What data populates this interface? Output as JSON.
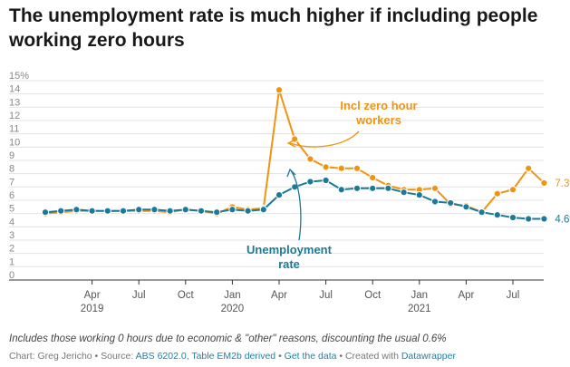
{
  "header": {
    "title": "The unemployment rate is much higher if including people working zero hours"
  },
  "chart_data": {
    "type": "line",
    "title": "The unemployment rate is much higher if including people working zero hours",
    "xlabel": "",
    "ylabel": "",
    "ylim": [
      0,
      15
    ],
    "y_ticks": [
      "0",
      "1",
      "2",
      "3",
      "4",
      "5",
      "6",
      "7",
      "8",
      "9",
      "10",
      "11",
      "12",
      "13",
      "14",
      "15%"
    ],
    "x_ticks": [
      {
        "month": "Apr",
        "year": "2019",
        "index": 3
      },
      {
        "month": "Jul",
        "year": "",
        "index": 6
      },
      {
        "month": "Oct",
        "year": "",
        "index": 9
      },
      {
        "month": "Jan",
        "year": "2020",
        "index": 12
      },
      {
        "month": "Apr",
        "year": "",
        "index": 15
      },
      {
        "month": "Jul",
        "year": "",
        "index": 18
      },
      {
        "month": "Oct",
        "year": "",
        "index": 21
      },
      {
        "month": "Jan",
        "year": "2021",
        "index": 24
      },
      {
        "month": "Apr",
        "year": "",
        "index": 27
      },
      {
        "month": "Jul",
        "year": "",
        "index": 30
      }
    ],
    "x": [
      "2019-01",
      "2019-02",
      "2019-03",
      "2019-04",
      "2019-05",
      "2019-06",
      "2019-07",
      "2019-08",
      "2019-09",
      "2019-10",
      "2019-11",
      "2019-12",
      "2020-01",
      "2020-02",
      "2020-03",
      "2020-04",
      "2020-05",
      "2020-06",
      "2020-07",
      "2020-08",
      "2020-09",
      "2020-10",
      "2020-11",
      "2020-12",
      "2021-01",
      "2021-02",
      "2021-03",
      "2021-04",
      "2021-05",
      "2021-06",
      "2021-07",
      "2021-08",
      "2021-09"
    ],
    "grid": true,
    "series": [
      {
        "name": "Incl zero hour workers",
        "color": "#f2930f",
        "end_label": "7.3%",
        "values": [
          5.0,
          5.1,
          5.2,
          5.2,
          5.2,
          5.2,
          5.2,
          5.2,
          5.1,
          5.3,
          5.2,
          5.0,
          5.5,
          5.3,
          5.4,
          14.3,
          10.6,
          9.1,
          8.5,
          8.4,
          8.4,
          7.7,
          7.1,
          6.8,
          6.8,
          6.9,
          5.7,
          5.6,
          5.1,
          6.5,
          6.8,
          8.4,
          7.3
        ]
      },
      {
        "name": "Unemployment rate",
        "color": "#1b7a99",
        "end_label": "4.6%",
        "values": [
          5.1,
          5.2,
          5.3,
          5.2,
          5.2,
          5.2,
          5.3,
          5.3,
          5.2,
          5.3,
          5.2,
          5.1,
          5.3,
          5.2,
          5.3,
          6.4,
          7.0,
          7.4,
          7.5,
          6.8,
          6.9,
          6.9,
          6.9,
          6.6,
          6.4,
          5.9,
          5.8,
          5.5,
          5.1,
          4.9,
          4.7,
          4.6,
          4.6
        ]
      }
    ],
    "annotations": [
      {
        "text_lines": [
          "Incl zero hour",
          "workers"
        ],
        "color": "#f2930f"
      },
      {
        "text_lines": [
          "Unemployment",
          "rate"
        ],
        "color": "#1b7a99"
      }
    ]
  },
  "footer": {
    "note": "Includes those working 0 hours due to economic & \"other\" reasons, discounting the usual 0.6%",
    "credit_prefix": "Chart: Greg Jericho • Source: ",
    "credit_source": "ABS 6202.0, Table EM2b derived",
    "credit_sep1": " • ",
    "credit_getdata": "Get the data",
    "credit_sep2": " • Created with ",
    "credit_tool": "Datawrapper"
  }
}
